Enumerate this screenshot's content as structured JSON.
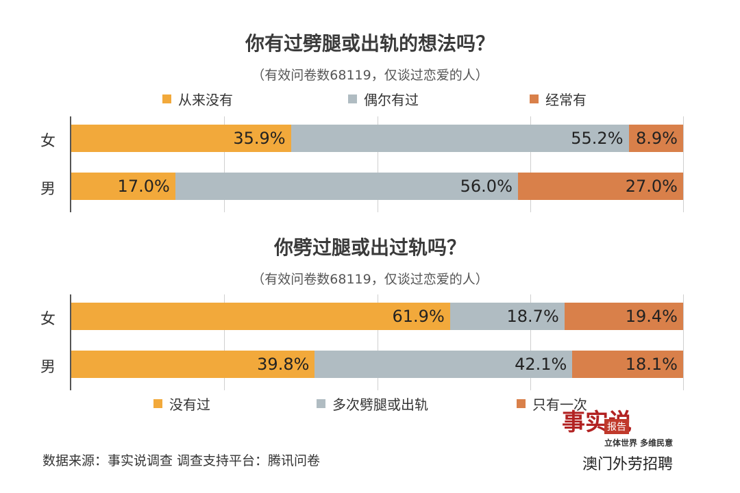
{
  "chart_data": [
    {
      "type": "bar",
      "stacked": true,
      "orientation": "horizontal",
      "title": "你有过劈腿或出轨的想法吗？",
      "subtitle": "（有效问卷数68119，仅谈过恋爱的人）",
      "categories": [
        "女",
        "男"
      ],
      "series": [
        {
          "name": "从来没有",
          "color": "#f2a93b",
          "values": [
            35.9,
            17.0
          ],
          "labels": [
            "35.9%",
            "17.0%"
          ]
        },
        {
          "name": "偶尔有过",
          "color": "#b0bcc2",
          "values": [
            55.2,
            56.0
          ],
          "labels": [
            "55.2%",
            "56.0%"
          ]
        },
        {
          "name": "经常有",
          "color": "#d9804a",
          "values": [
            8.9,
            27.0
          ],
          "labels": [
            "8.9%",
            "27.0%"
          ]
        }
      ],
      "xlim": [
        0,
        100
      ],
      "grid": true,
      "legend": "top"
    },
    {
      "type": "bar",
      "stacked": true,
      "orientation": "horizontal",
      "title": "你劈过腿或出过轨吗？",
      "subtitle": "（有效问卷数68119，仅谈过恋爱的人）",
      "categories": [
        "女",
        "男"
      ],
      "series": [
        {
          "name": "没有过",
          "color": "#f2a93b",
          "values": [
            61.9,
            39.8
          ],
          "labels": [
            "61.9%",
            "39.8%"
          ]
        },
        {
          "name": "多次劈腿或出轨",
          "color": "#b0bcc2",
          "values": [
            18.7,
            42.1
          ],
          "labels": [
            "18.7%",
            "42.1%"
          ]
        },
        {
          "name": "只有一次",
          "color": "#d9804a",
          "values": [
            19.4,
            18.1
          ],
          "labels": [
            "19.4%",
            "18.1%"
          ]
        }
      ],
      "xlim": [
        0,
        100
      ],
      "grid": true,
      "legend": "bottom"
    }
  ],
  "footer": {
    "source": "数据来源：事实说调查  调查支持平台：腾讯问卷"
  },
  "logo": {
    "brush_text": "事实说",
    "tag": "报告",
    "slogan": "立体世界 多维民意",
    "account": "澳门外劳招聘"
  }
}
